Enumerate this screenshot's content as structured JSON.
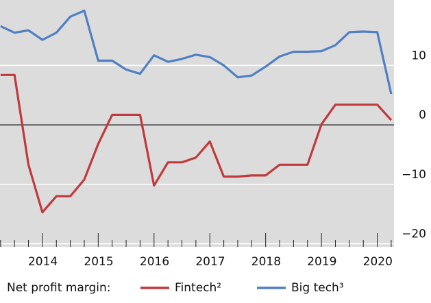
{
  "chart_data": {
    "type": "line",
    "legend_title": "Net profit margin:",
    "x": [
      2013.25,
      2013.5,
      2013.75,
      2014,
      2014.25,
      2014.5,
      2014.75,
      2015,
      2015.25,
      2015.5,
      2015.75,
      2016,
      2016.25,
      2016.5,
      2016.75,
      2017,
      2017.25,
      2017.5,
      2017.75,
      2018,
      2018.25,
      2018.5,
      2018.75,
      2019,
      2019.25,
      2019.5,
      2019.75,
      2020,
      2020.25
    ],
    "series": [
      {
        "name": "Fintech²",
        "color": "#c0393b",
        "values": [
          8.4,
          8.4,
          -6.7,
          -14.7,
          -12.0,
          -12.0,
          -9.2,
          -3.2,
          1.7,
          1.7,
          1.7,
          -10.2,
          -6.3,
          -6.3,
          -5.5,
          -2.8,
          -8.7,
          -8.7,
          -8.5,
          -8.5,
          -6.7,
          -6.7,
          -6.7,
          0.1,
          3.4,
          3.4,
          3.4,
          3.4,
          0.8
        ]
      },
      {
        "name": "Big tech³",
        "color": "#4f7fc4",
        "values": [
          16.6,
          15.5,
          15.9,
          14.3,
          15.5,
          18.2,
          19.2,
          10.8,
          10.8,
          9.3,
          8.6,
          11.7,
          10.6,
          11.1,
          11.8,
          11.4,
          10.0,
          8.0,
          8.3,
          9.8,
          11.5,
          12.3,
          12.3,
          12.4,
          13.4,
          15.6,
          15.7,
          15.6,
          5.2
        ]
      }
    ],
    "xlim": [
      2013.24,
      2020.3
    ],
    "xticks": [
      {
        "value": 2014.5,
        "label": "2014"
      },
      {
        "value": 2015.5,
        "label": "2015"
      },
      {
        "value": 2016.5,
        "label": "2016"
      },
      {
        "value": 2017.5,
        "label": "2017"
      },
      {
        "value": 2018.5,
        "label": "2018"
      },
      {
        "value": 2019.5,
        "label": "2019"
      },
      {
        "value": 2020.5,
        "label": "2020"
      }
    ],
    "ylim": [
      -20.5,
      21
    ],
    "yticks": [
      {
        "value": -20,
        "label": "−20"
      },
      {
        "value": -10,
        "label": "−10"
      },
      0,
      10
    ],
    "grid": true
  }
}
